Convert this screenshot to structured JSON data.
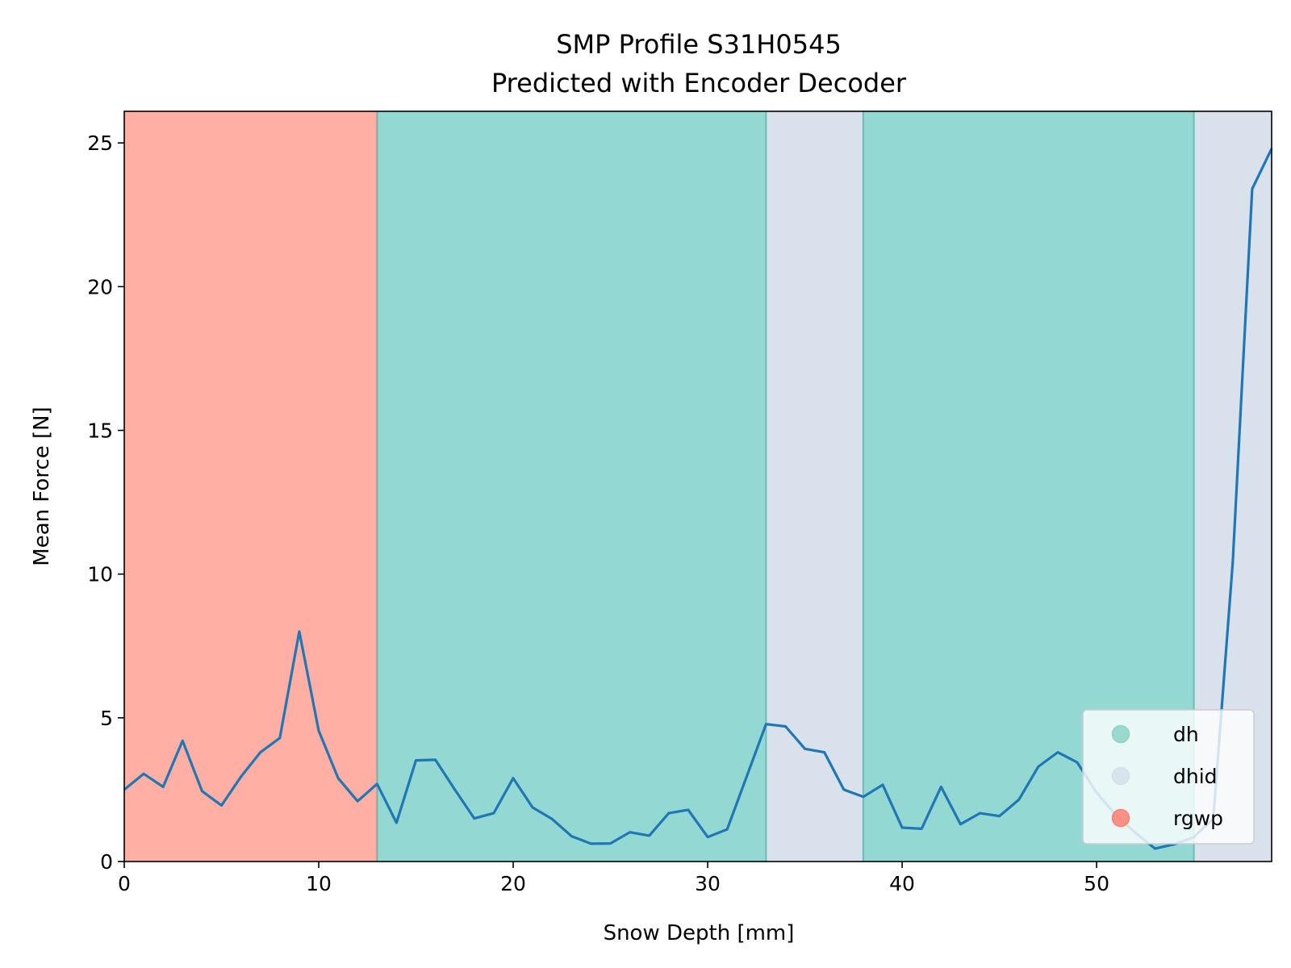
{
  "chart_data": {
    "type": "line",
    "title": "SMP Profile S31H0545",
    "subtitle": "Predicted with Encoder Decoder",
    "xlabel": "Snow Depth [mm]",
    "ylabel": "Mean Force [N]",
    "xlim": [
      0,
      59
    ],
    "ylim": [
      0,
      26.1
    ],
    "xticks": [
      0,
      10,
      20,
      30,
      40,
      50
    ],
    "yticks": [
      0,
      5,
      10,
      15,
      20,
      25
    ],
    "grid": false,
    "legend_position": "bottom-right",
    "line_color": "#1f77b4",
    "x": [
      0,
      1,
      2,
      3,
      4,
      5,
      6,
      7,
      8,
      9,
      10,
      11,
      12,
      13,
      14,
      15,
      16,
      17,
      18,
      19,
      20,
      21,
      22,
      23,
      24,
      25,
      26,
      27,
      28,
      29,
      30,
      31,
      32,
      33,
      34,
      35,
      36,
      37,
      38,
      39,
      40,
      41,
      42,
      43,
      44,
      45,
      46,
      47,
      48,
      49,
      50,
      51,
      52,
      53,
      54,
      55,
      56,
      57,
      58,
      59
    ],
    "y": [
      2.5,
      3.05,
      2.6,
      4.2,
      2.45,
      1.95,
      2.95,
      3.8,
      4.3,
      8.0,
      4.55,
      2.9,
      2.1,
      2.7,
      1.35,
      3.52,
      3.54,
      2.5,
      1.5,
      1.68,
      2.9,
      1.88,
      1.48,
      0.88,
      0.62,
      0.63,
      1.02,
      0.9,
      1.68,
      1.8,
      0.85,
      1.12,
      2.95,
      4.78,
      4.7,
      3.92,
      3.8,
      2.5,
      2.25,
      2.67,
      1.18,
      1.14,
      2.6,
      1.3,
      1.68,
      1.58,
      2.15,
      3.3,
      3.8,
      3.45,
      2.4,
      1.6,
      1.0,
      0.45,
      0.6,
      0.85,
      1.5,
      10.4,
      23.4,
      24.8
    ],
    "segments": [
      {
        "label": "rgwp",
        "x0": 0,
        "x1": 13
      },
      {
        "label": "dh",
        "x0": 13,
        "x1": 33
      },
      {
        "label": "dhid",
        "x0": 33,
        "x1": 38
      },
      {
        "label": "dh",
        "x0": 38,
        "x1": 55
      },
      {
        "label": "dhid",
        "x0": 55,
        "x1": 59
      }
    ],
    "legend": [
      {
        "label": "dh",
        "color": "#8dd3c7"
      },
      {
        "label": "dhid",
        "color": "#d5dfec"
      },
      {
        "label": "rgwp",
        "color": "#fb8072"
      }
    ],
    "colors": {
      "dh": "#93d8d3",
      "dhid": "#d8e1ec",
      "rgwp": "#ffafa4"
    }
  }
}
